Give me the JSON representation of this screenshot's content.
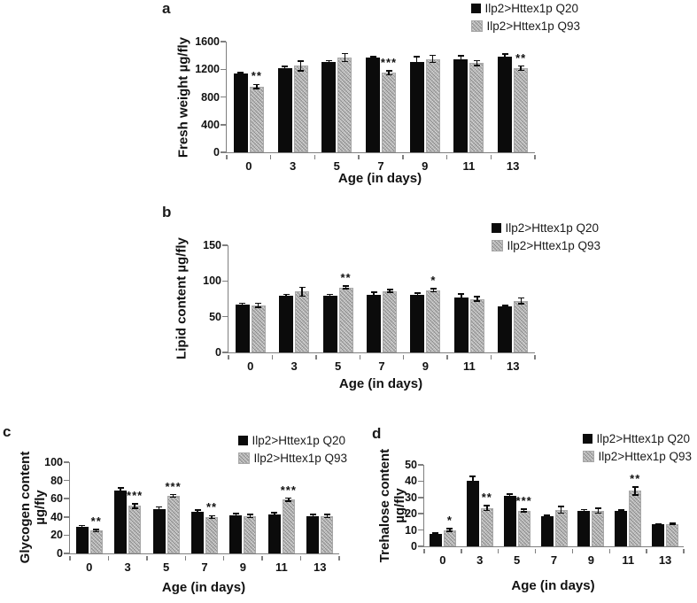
{
  "figure": {
    "panels": [
      {
        "label": "a"
      },
      {
        "label": "b"
      },
      {
        "label": "c"
      },
      {
        "label": "d"
      }
    ]
  },
  "colors": {
    "q20_bar": "#0b0b0b",
    "q93_bar_base": "#d6d6d6",
    "q93_bar_speckle": "#6e6e6e",
    "axis": "#7f7f7f",
    "text": "#111111",
    "background": "#ffffff"
  },
  "chart_data": [
    {
      "panel": "a",
      "type": "bar",
      "title": "",
      "xlabel": "Age (in days)",
      "ylabel": "Fresh weight µg/fly",
      "ylabel_lines": [
        "Fresh weight µg/fly"
      ],
      "categories": [
        "0",
        "3",
        "5",
        "7",
        "9",
        "11",
        "13"
      ],
      "ylim": [
        0,
        1600
      ],
      "yticks": [
        0,
        400,
        800,
        1200,
        1600
      ],
      "grid": false,
      "legend_position": "top-right",
      "series": [
        {
          "name": "Ilp2>Httex1p Q20",
          "values": [
            1140,
            1220,
            1300,
            1370,
            1310,
            1350,
            1380
          ],
          "errors": [
            15,
            20,
            25,
            15,
            75,
            45,
            40
          ]
        },
        {
          "name": "Ilp2>Httex1p Q93",
          "values": [
            950,
            1250,
            1370,
            1150,
            1350,
            1290,
            1215
          ],
          "errors": [
            30,
            70,
            55,
            30,
            50,
            35,
            30
          ]
        }
      ],
      "significance": [
        {
          "category": "0",
          "label": "**",
          "series": "Ilp2>Httex1p Q93"
        },
        {
          "category": "7",
          "label": "***",
          "series": "Ilp2>Httex1p Q93"
        },
        {
          "category": "13",
          "label": "**",
          "series": "Ilp2>Httex1p Q93"
        }
      ]
    },
    {
      "panel": "b",
      "type": "bar",
      "title": "",
      "xlabel": "Age (in days)",
      "ylabel": "Lipid content µg/fly",
      "ylabel_lines": [
        "Lipid content µg/fly"
      ],
      "categories": [
        "0",
        "3",
        "5",
        "7",
        "9",
        "11",
        "13"
      ],
      "ylim": [
        0,
        150
      ],
      "yticks": [
        0,
        50,
        100,
        150
      ],
      "grid": false,
      "legend_position": "top-right",
      "series": [
        {
          "name": "Ilp2>Httex1p Q20",
          "values": [
            67,
            79,
            79,
            80,
            81,
            77,
            64
          ],
          "errors": [
            2,
            2,
            2,
            4,
            2,
            5,
            2
          ]
        },
        {
          "name": "Ilp2>Httex1p Q93",
          "values": [
            66,
            85,
            91,
            86,
            87,
            75,
            72
          ],
          "errors": [
            3,
            6,
            2,
            2,
            2,
            3,
            4
          ]
        }
      ],
      "significance": [
        {
          "category": "5",
          "label": "**",
          "series": "Ilp2>Httex1p Q93"
        },
        {
          "category": "9",
          "label": "*",
          "series": "Ilp2>Httex1p Q93"
        }
      ]
    },
    {
      "panel": "c",
      "type": "bar",
      "title": "",
      "xlabel": "Age (in days)",
      "ylabel": "Glycogen content µg/fly",
      "ylabel_lines": [
        "Glycogen content",
        "µg/fly"
      ],
      "categories": [
        "0",
        "3",
        "5",
        "7",
        "9",
        "11",
        "13"
      ],
      "ylim": [
        0,
        100
      ],
      "yticks": [
        0,
        20,
        40,
        60,
        80,
        100
      ],
      "grid": false,
      "legend_position": "top-right",
      "series": [
        {
          "name": "Ilp2>Httex1p Q20",
          "values": [
            29,
            69,
            49,
            46,
            42,
            43,
            41
          ],
          "errors": [
            1.5,
            3,
            2,
            1.5,
            1.5,
            1.5,
            1.5
          ]
        },
        {
          "name": "Ilp2>Httex1p Q93",
          "values": [
            25,
            52,
            63,
            40,
            41,
            59,
            41
          ],
          "errors": [
            1,
            2.5,
            1.5,
            1.5,
            1.5,
            1.5,
            1.5
          ]
        }
      ],
      "significance": [
        {
          "category": "0",
          "label": "**",
          "series": "Ilp2>Httex1p Q93"
        },
        {
          "category": "3",
          "label": "***",
          "series": "Ilp2>Httex1p Q93"
        },
        {
          "category": "5",
          "label": "***",
          "series": "Ilp2>Httex1p Q93"
        },
        {
          "category": "7",
          "label": "**",
          "series": "Ilp2>Httex1p Q93"
        },
        {
          "category": "11",
          "label": "***",
          "series": "Ilp2>Httex1p Q93"
        }
      ]
    },
    {
      "panel": "d",
      "type": "bar",
      "title": "",
      "xlabel": "Age (in days)",
      "ylabel": "Trehalose content µg/fly",
      "ylabel_lines": [
        "Trehalose content",
        "µg/fly"
      ],
      "categories": [
        "0",
        "3",
        "5",
        "7",
        "9",
        "11",
        "13"
      ],
      "ylim": [
        0,
        50
      ],
      "yticks": [
        0,
        10,
        20,
        30,
        40,
        50
      ],
      "grid": false,
      "legend_position": "top-right",
      "series": [
        {
          "name": "Ilp2>Httex1p Q20",
          "values": [
            7.5,
            40,
            31,
            18.5,
            21.5,
            21.5,
            13.5
          ],
          "errors": [
            0.6,
            3,
            1,
            0.6,
            1,
            0.7,
            0.4
          ]
        },
        {
          "name": "Ilp2>Httex1p Q93",
          "values": [
            10,
            23.5,
            22,
            22.5,
            22,
            34,
            13.7
          ],
          "errors": [
            0.8,
            1.5,
            0.8,
            2,
            1.5,
            2.5,
            0.5
          ]
        }
      ],
      "significance": [
        {
          "category": "0",
          "label": "*",
          "series": "Ilp2>Httex1p Q93"
        },
        {
          "category": "3",
          "label": "**",
          "series": "Ilp2>Httex1p Q93"
        },
        {
          "category": "5",
          "label": "***",
          "series": "Ilp2>Httex1p Q93"
        },
        {
          "category": "11",
          "label": "**",
          "series": "Ilp2>Httex1p Q93"
        }
      ]
    }
  ]
}
